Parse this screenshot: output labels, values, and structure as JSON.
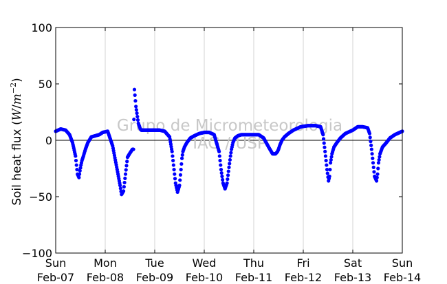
{
  "chart_data": {
    "type": "scatter",
    "ylabel_text": "Soil heat flux (",
    "ylabel_var": "W",
    "ylabel_unit_mid": "/",
    "ylabel_unit_m": "m",
    "ylabel_exp": "−2",
    "ylabel_close": ")",
    "ylim": [
      -100,
      100
    ],
    "xlim_days": [
      0,
      7
    ],
    "yticks": [
      {
        "value": 100,
        "label": "100"
      },
      {
        "value": 50,
        "label": "50"
      },
      {
        "value": 0,
        "label": "0"
      },
      {
        "value": -50,
        "label": "−50"
      },
      {
        "value": -100,
        "label": "−100"
      }
    ],
    "xticks": [
      {
        "day": 0,
        "weekday": "Sun",
        "date": "Feb-07"
      },
      {
        "day": 1,
        "weekday": "Mon",
        "date": "Feb-08"
      },
      {
        "day": 2,
        "weekday": "Tue",
        "date": "Feb-09"
      },
      {
        "day": 3,
        "weekday": "Wed",
        "date": "Feb-10"
      },
      {
        "day": 4,
        "weekday": "Thu",
        "date": "Feb-11"
      },
      {
        "day": 5,
        "weekday": "Fri",
        "date": "Feb-12"
      },
      {
        "day": 6,
        "weekday": "Sat",
        "date": "Feb-13"
      },
      {
        "day": 7,
        "weekday": "Sun",
        "date": "Feb-14"
      }
    ],
    "grid": "vertical",
    "zero_line": true,
    "watermark_line1": "Grupo de Micrometeorologia",
    "watermark_line2": "IAG / USP",
    "series": [
      {
        "color": "#0000ff",
        "x_unit": "days since Feb-07 00:00",
        "x": [
          0.0,
          0.1,
          0.2,
          0.28,
          0.34,
          0.4,
          0.44,
          0.47,
          0.49,
          0.51,
          0.53,
          0.56,
          0.6,
          0.65,
          0.72,
          0.8,
          0.88,
          0.95,
          1.05,
          1.15,
          1.25,
          1.3,
          1.33,
          1.37,
          1.41,
          1.45,
          1.49,
          1.52,
          1.55,
          1.57,
          1.59,
          1.62,
          1.67,
          1.71,
          1.73,
          1.74,
          1.75,
          1.755,
          1.76,
          1.77,
          1.78,
          1.8,
          1.82,
          1.85,
          1.9,
          2.0,
          2.1,
          2.2,
          2.3,
          2.35,
          2.39,
          2.42,
          2.46,
          2.5,
          2.53,
          2.55,
          2.57,
          2.6,
          2.65,
          2.72,
          2.8,
          2.9,
          3.0,
          3.1,
          3.2,
          3.3,
          3.34,
          3.38,
          3.42,
          3.46,
          3.5,
          3.53,
          3.55,
          3.58,
          3.62,
          3.68,
          3.75,
          3.85,
          4.0,
          4.1,
          4.2,
          4.3,
          4.38,
          4.44,
          4.48,
          4.5,
          4.53,
          4.57,
          4.62,
          4.7,
          4.8,
          4.95,
          5.1,
          5.25,
          5.35,
          5.4,
          5.44,
          5.48,
          5.51,
          5.53,
          5.55,
          5.58,
          5.62,
          5.68,
          5.75,
          5.85,
          6.0,
          6.1,
          6.2,
          6.3,
          6.34,
          6.38,
          6.41,
          6.44,
          6.48,
          6.5,
          6.52,
          6.55,
          6.6,
          6.68,
          6.75,
          6.85,
          7.0
        ],
        "y": [
          8,
          10,
          9,
          5,
          -2,
          -14,
          -30,
          -33,
          -27,
          -22,
          -18,
          -14,
          -8,
          -2,
          3,
          4,
          5,
          7,
          8,
          -5,
          -28,
          -40,
          -48,
          -45,
          -30,
          -15,
          -12,
          -10,
          -8,
          -8,
          45,
          30,
          15,
          10,
          9,
          9,
          9,
          9,
          9,
          9,
          9,
          9,
          9,
          9,
          9,
          9,
          9,
          8,
          3,
          -10,
          -26,
          -38,
          -46,
          -40,
          -26,
          -16,
          -10,
          -6,
          -2,
          2,
          4,
          6,
          7,
          7,
          5,
          -10,
          -26,
          -38,
          -43,
          -38,
          -24,
          -14,
          -8,
          -2,
          2,
          4,
          5,
          5,
          5,
          5,
          2,
          -6,
          -12,
          -12,
          -10,
          -8,
          -4,
          0,
          3,
          6,
          9,
          12,
          13,
          13,
          12,
          5,
          -10,
          -26,
          -36,
          -32,
          -20,
          -12,
          -6,
          -2,
          2,
          6,
          9,
          12,
          12,
          11,
          6,
          -8,
          -20,
          -32,
          -36,
          -30,
          -20,
          -12,
          -6,
          -2,
          2,
          5,
          8
        ]
      }
    ]
  }
}
